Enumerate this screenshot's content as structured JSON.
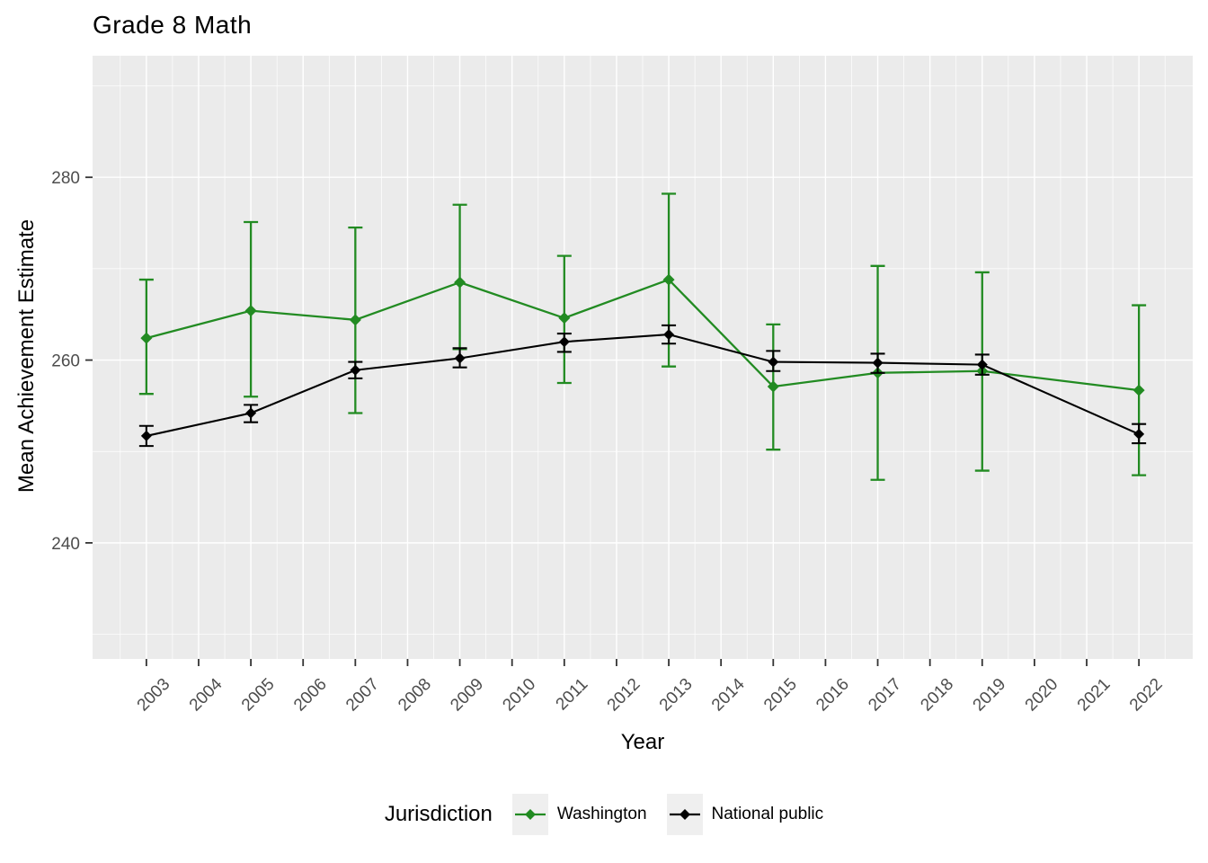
{
  "figure": {
    "title": "Grade 8 Math",
    "x_axis_label": "Year",
    "y_axis_label": "Mean Achievement Estimate"
  },
  "legend": {
    "title": "Jurisdiction",
    "position": "bottom",
    "items": [
      {
        "label": "Washington",
        "color": "#228B22"
      },
      {
        "label": "National public",
        "color": "#000000"
      }
    ]
  },
  "colors": {
    "panel_background": "#EBEBEB",
    "gridline": "#FFFFFF",
    "tick_label": "#4D4D4D",
    "tick_mark": "#333333",
    "legend_key_background": "#EFEFEF"
  },
  "chart_data": {
    "type": "line",
    "title": "Grade 8 Math",
    "xlabel": "Year",
    "ylabel": "Mean Achievement Estimate",
    "grid": true,
    "error_bars": true,
    "legend_position": "bottom",
    "xlim": [
      2001.97,
      2023.03
    ],
    "ylim": [
      227.3,
      293.3
    ],
    "x_ticks": [
      2003,
      2004,
      2005,
      2006,
      2007,
      2008,
      2009,
      2010,
      2011,
      2012,
      2013,
      2014,
      2015,
      2016,
      2017,
      2018,
      2019,
      2020,
      2021,
      2022
    ],
    "x_minor_ticks": [
      2002.5,
      2003.5,
      2004.5,
      2005.5,
      2006.5,
      2007.5,
      2008.5,
      2009.5,
      2010.5,
      2011.5,
      2012.5,
      2013.5,
      2014.5,
      2015.5,
      2016.5,
      2017.5,
      2018.5,
      2019.5,
      2020.5,
      2021.5,
      2022.5
    ],
    "y_ticks": [
      240,
      260,
      280
    ],
    "y_minor_ticks": [
      230,
      250,
      270,
      290
    ],
    "x": [
      2003,
      2005,
      2007,
      2009,
      2011,
      2013,
      2015,
      2017,
      2019,
      2022
    ],
    "series": [
      {
        "name": "Washington",
        "color": "#228B22",
        "values": [
          262.4,
          265.4,
          264.4,
          268.5,
          264.6,
          268.8,
          257.1,
          258.6,
          258.8,
          256.7
        ],
        "ci_low": [
          256.3,
          256.0,
          254.2,
          261.2,
          257.5,
          259.3,
          250.2,
          246.9,
          247.9,
          247.4
        ],
        "ci_high": [
          268.8,
          275.1,
          274.5,
          277.0,
          271.4,
          278.2,
          263.9,
          270.3,
          269.6,
          266.0
        ]
      },
      {
        "name": "National public",
        "color": "#000000",
        "values": [
          251.7,
          254.2,
          258.9,
          260.2,
          262.0,
          262.8,
          259.8,
          259.7,
          259.5,
          251.9
        ],
        "ci_low": [
          250.6,
          253.2,
          258.0,
          259.2,
          260.9,
          261.8,
          258.8,
          258.6,
          258.4,
          250.9
        ],
        "ci_high": [
          252.8,
          255.1,
          259.8,
          261.3,
          262.9,
          263.8,
          261.0,
          260.7,
          260.6,
          253.0
        ]
      }
    ]
  }
}
